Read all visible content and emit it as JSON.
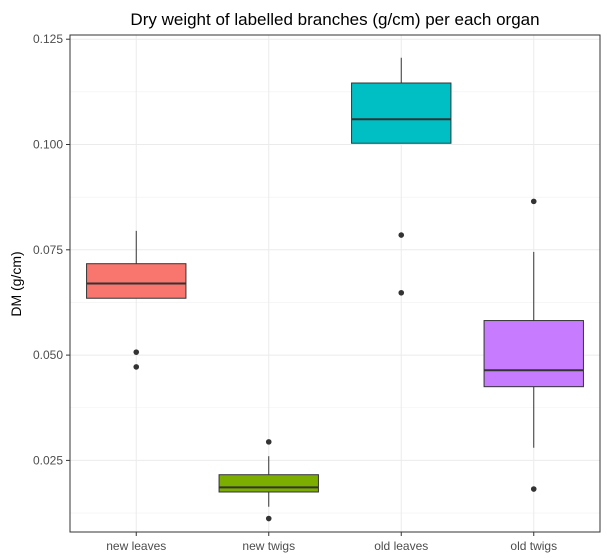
{
  "chart_data": {
    "type": "boxplot",
    "title": "Dry weight of labelled branches (g/cm) per each organ",
    "xlabel": "",
    "ylabel": "DM (g/cm)",
    "ylim": [
      0.008,
      0.126
    ],
    "yticks": [
      0.025,
      0.05,
      0.075,
      0.1,
      0.125
    ],
    "ytick_labels": [
      "0.025",
      "0.050",
      "0.075",
      "0.100",
      "0.125"
    ],
    "grid": true,
    "legend": "none",
    "categories": [
      "new leaves",
      "new twigs",
      "old leaves",
      "old twigs"
    ],
    "boxes": [
      {
        "category": "new leaves",
        "color": "#F8766D",
        "whisker_low": 0.0635,
        "q1": 0.0635,
        "median": 0.067,
        "q3": 0.0717,
        "whisker_high": 0.0795,
        "outliers": [
          0.0507,
          0.0472
        ]
      },
      {
        "category": "new twigs",
        "color": "#7CAE00",
        "whisker_low": 0.014,
        "q1": 0.0175,
        "median": 0.0186,
        "q3": 0.0216,
        "whisker_high": 0.026,
        "outliers": [
          0.0294,
          0.0112
        ]
      },
      {
        "category": "old leaves",
        "color": "#00BFC4",
        "whisker_low": 0.1003,
        "q1": 0.1003,
        "median": 0.106,
        "q3": 0.1146,
        "whisker_high": 0.1206,
        "outliers": [
          0.0785,
          0.0648
        ]
      },
      {
        "category": "old twigs",
        "color": "#C77CFF",
        "whisker_low": 0.028,
        "q1": 0.0425,
        "median": 0.0464,
        "q3": 0.0582,
        "whisker_high": 0.0745,
        "outliers": [
          0.0865,
          0.0182
        ]
      }
    ]
  }
}
